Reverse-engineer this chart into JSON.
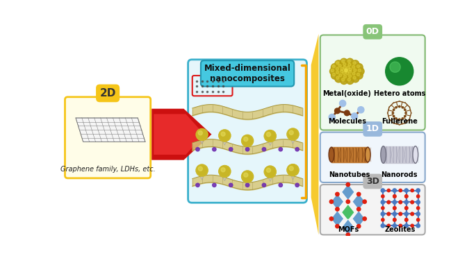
{
  "box_2d_label": "2D",
  "box_2d_sublabel": "Graphene family, LDHs, etc.",
  "box_2d_edge": "#f5c518",
  "box_2d_fill": "#fffde8",
  "center_label_line1": "Mixed-dimensional",
  "center_label_line2": "nanocomposites",
  "center_box_fill": "#e5f6fb",
  "center_box_edge": "#3bb0cc",
  "center_label_fill": "#45c8e0",
  "center_label_edge": "#2196b0",
  "box_0d_label": "0D",
  "box_0d_fill": "#f0faf0",
  "box_0d_edge": "#80b870",
  "box_0d_tab": "#88c478",
  "box_0d_items": [
    "Metal(oxide)",
    "Hetero atoms",
    "Molecules",
    "Fullerene"
  ],
  "box_1d_label": "1D",
  "box_1d_fill": "#f0f6fc",
  "box_1d_edge": "#88a8cc",
  "box_1d_tab": "#98b8dc",
  "box_1d_items": [
    "Nanotubes",
    "Nanorods"
  ],
  "box_3d_label": "3D",
  "box_3d_fill": "#f4f4f4",
  "box_3d_edge": "#aaaaaa",
  "box_3d_tab": "#b8b8b8",
  "box_3d_items": [
    "MOFs",
    "Zeolites"
  ],
  "arrow_color_dark": "#cc1010",
  "arrow_color_light": "#ff5050",
  "funnel_color": "#f5c518",
  "bracket_color": "#f5a500",
  "bg_color": "#ffffff"
}
